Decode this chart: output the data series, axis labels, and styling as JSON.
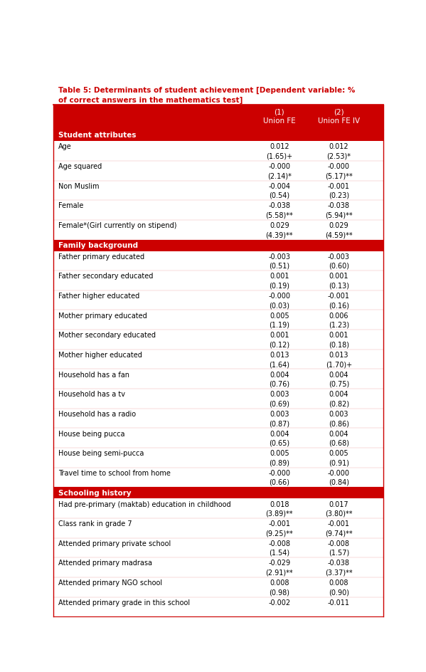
{
  "title_line1": "Table 5: Determinants of student achievement [Dependent variable: %",
  "title_line2": "of correct answers in the mathematics test]",
  "col1_header1": "(1)",
  "col1_header2": "Union FE",
  "col2_header1": "(2)",
  "col2_header2": "Union FE IV",
  "sections": [
    {
      "type": "section_header",
      "label": "Student attributes"
    },
    {
      "type": "data_row",
      "label": "Age",
      "col1": "0.012",
      "col2": "0.012",
      "col1_stat": "(1.65)+",
      "col2_stat": "(2.53)*"
    },
    {
      "type": "data_row",
      "label": "Age squared",
      "col1": "-0.000",
      "col2": "-0.000",
      "col1_stat": "(2.14)*",
      "col2_stat": "(5.17)**"
    },
    {
      "type": "data_row",
      "label": "Non Muslim",
      "col1": "-0.004",
      "col2": "-0.001",
      "col1_stat": "(0.54)",
      "col2_stat": "(0.23)"
    },
    {
      "type": "data_row",
      "label": "Female",
      "col1": "-0.038",
      "col2": "-0.038",
      "col1_stat": "(5.58)**",
      "col2_stat": "(5.94)**"
    },
    {
      "type": "data_row",
      "label": "Female*(Girl currently on stipend)",
      "col1": "0.029",
      "col2": "0.029",
      "col1_stat": "(4.39)**",
      "col2_stat": "(4.59)**"
    },
    {
      "type": "section_header",
      "label": "Family background"
    },
    {
      "type": "data_row",
      "label": "Father primary educated",
      "col1": "-0.003",
      "col2": "-0.003",
      "col1_stat": "(0.51)",
      "col2_stat": "(0.60)"
    },
    {
      "type": "data_row",
      "label": "Father secondary educated",
      "col1": "0.001",
      "col2": "0.001",
      "col1_stat": "(0.19)",
      "col2_stat": "(0.13)"
    },
    {
      "type": "data_row",
      "label": "Father higher educated",
      "col1": "-0.000",
      "col2": "-0.001",
      "col1_stat": "(0.03)",
      "col2_stat": "(0.16)"
    },
    {
      "type": "data_row",
      "label": "Mother primary educated",
      "col1": "0.005",
      "col2": "0.006",
      "col1_stat": "(1.19)",
      "col2_stat": "(1.23)"
    },
    {
      "type": "data_row",
      "label": "Mother secondary educated",
      "col1": "0.001",
      "col2": "0.001",
      "col1_stat": "(0.12)",
      "col2_stat": "(0.18)"
    },
    {
      "type": "data_row",
      "label": "Mother higher educated",
      "col1": "0.013",
      "col2": "0.013",
      "col1_stat": "(1.64)",
      "col2_stat": "(1.70)+"
    },
    {
      "type": "data_row",
      "label": "Household has a fan",
      "col1": "0.004",
      "col2": "0.004",
      "col1_stat": "(0.76)",
      "col2_stat": "(0.75)"
    },
    {
      "type": "data_row",
      "label": "Household has a tv",
      "col1": "0.003",
      "col2": "0.004",
      "col1_stat": "(0.69)",
      "col2_stat": "(0.82)"
    },
    {
      "type": "data_row",
      "label": "Household has a radio",
      "col1": "0.003",
      "col2": "0.003",
      "col1_stat": "(0.87)",
      "col2_stat": "(0.86)"
    },
    {
      "type": "data_row",
      "label": "House being pucca",
      "col1": "0.004",
      "col2": "0.004",
      "col1_stat": "(0.65)",
      "col2_stat": "(0.68)"
    },
    {
      "type": "data_row",
      "label": "House being semi-pucca",
      "col1": "0.005",
      "col2": "0.005",
      "col1_stat": "(0.89)",
      "col2_stat": "(0.91)"
    },
    {
      "type": "data_row",
      "label": "Travel time to school from home",
      "col1": "-0.000",
      "col2": "-0.000",
      "col1_stat": "(0.66)",
      "col2_stat": "(0.84)"
    },
    {
      "type": "section_header",
      "label": "Schooling history"
    },
    {
      "type": "data_row",
      "label": "Had pre-primary (maktab) education in childhood",
      "col1": "0.018",
      "col2": "0.017",
      "col1_stat": "(3.89)**",
      "col2_stat": "(3.80)**"
    },
    {
      "type": "data_row",
      "label": "Class rank in grade 7",
      "col1": "-0.001",
      "col2": "-0.001",
      "col1_stat": "(9.25)**",
      "col2_stat": "(9.74)**"
    },
    {
      "type": "data_row",
      "label": "Attended primary private school",
      "col1": "-0.008",
      "col2": "-0.008",
      "col1_stat": "(1.54)",
      "col2_stat": "(1.57)"
    },
    {
      "type": "data_row",
      "label": "Attended primary madrasa",
      "col1": "-0.029",
      "col2": "-0.038",
      "col1_stat": "(2.91)**",
      "col2_stat": "(3.37)**"
    },
    {
      "type": "data_row",
      "label": "Attended primary NGO school",
      "col1": "0.008",
      "col2": "0.008",
      "col1_stat": "(0.98)",
      "col2_stat": "(0.90)"
    },
    {
      "type": "data_row",
      "label": "Attended primary grade in this school",
      "col1": "-0.002",
      "col2": "-0.011",
      "col1_stat": "",
      "col2_stat": ""
    }
  ],
  "header_bg_color": "#CC0000",
  "section_header_bg_color": "#CC0000",
  "title_color": "#CC0000",
  "border_color": "#CC0000"
}
